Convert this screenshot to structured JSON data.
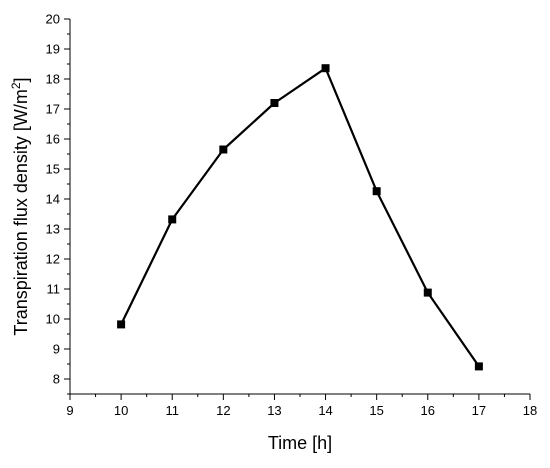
{
  "chart_data": {
    "type": "line",
    "xlabel": "Time [h]",
    "ylabel_main": "Transpiration flux density [W/m",
    "ylabel_sup": "2",
    "ylabel_close": "]",
    "xlim": [
      9,
      18
    ],
    "ylim": [
      7.5,
      20
    ],
    "x_ticks": [
      "9",
      "10",
      "11",
      "12",
      "13",
      "14",
      "15",
      "16",
      "17",
      "18"
    ],
    "y_ticks": [
      "8",
      "9",
      "10",
      "11",
      "12",
      "13",
      "14",
      "15",
      "16",
      "17",
      "18",
      "19",
      "20"
    ],
    "grid": false,
    "marker": "square",
    "line_color": "#000000",
    "series": [
      {
        "x": [
          10,
          11,
          12,
          13,
          14,
          15,
          16,
          17
        ],
        "values": [
          9.82,
          13.32,
          15.65,
          17.2,
          18.36,
          14.26,
          10.88,
          8.42
        ]
      }
    ]
  }
}
